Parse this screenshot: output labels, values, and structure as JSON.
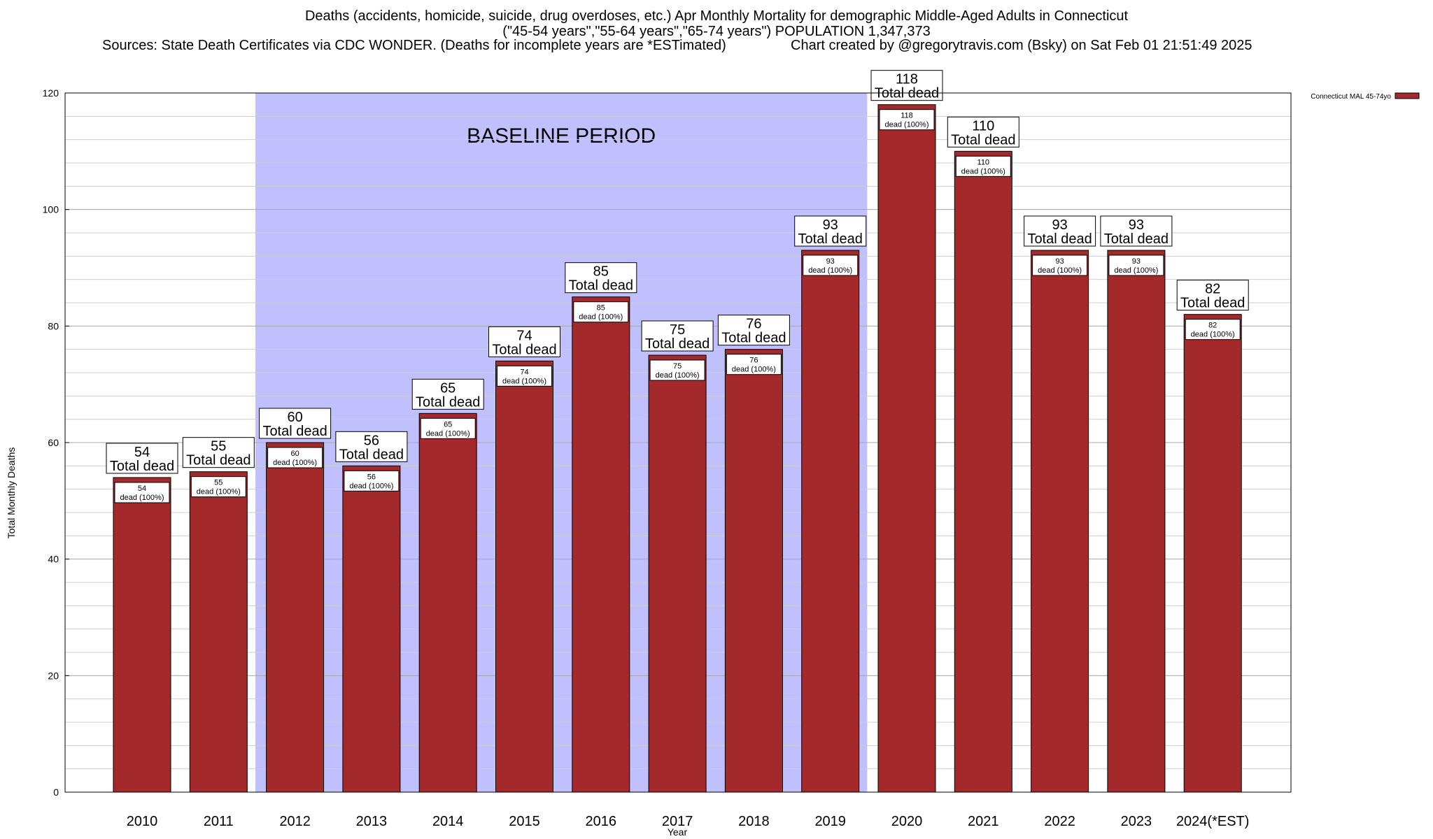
{
  "title": {
    "line1": "Deaths (accidents, homicide, suicide, drug overdoses, etc.) Apr Monthly Mortality for demographic Middle-Aged Adults in Connecticut",
    "line2": "(\"45-54 years\",\"55-64 years\",\"65-74 years\") POPULATION 1,347,373",
    "sources": "Sources: State Death Certificates via CDC WONDER. (Deaths for incomplete years are *ESTimated)",
    "credit": "Chart created by @gregorytravis.com (Bsky) on Sat Feb 01 21:51:49 2025"
  },
  "chart_data": {
    "type": "bar",
    "xlabel": "Year",
    "ylabel": "Total Monthly Deaths",
    "ylim": [
      0,
      120
    ],
    "yticks": [
      0,
      20,
      40,
      60,
      80,
      100,
      120
    ],
    "categories": [
      "2010",
      "2011",
      "2012",
      "2013",
      "2014",
      "2015",
      "2016",
      "2017",
      "2018",
      "2019",
      "2020",
      "2021",
      "2022",
      "2023",
      "2024(*EST)"
    ],
    "series": [
      {
        "name": "Connecticut MAL 45-74yo",
        "color": "#a4292a",
        "values": [
          54,
          55,
          60,
          56,
          65,
          74,
          85,
          75,
          76,
          93,
          118,
          110,
          93,
          93,
          82
        ]
      }
    ],
    "top_label_suffix": "Total dead",
    "inner_label_suffix": "dead (100%)",
    "baseline": {
      "label": "BASELINE PERIOD",
      "from": "2012",
      "to": "2019",
      "color": "#c0c0ff"
    },
    "grid": true,
    "legend_position": "top-right"
  }
}
